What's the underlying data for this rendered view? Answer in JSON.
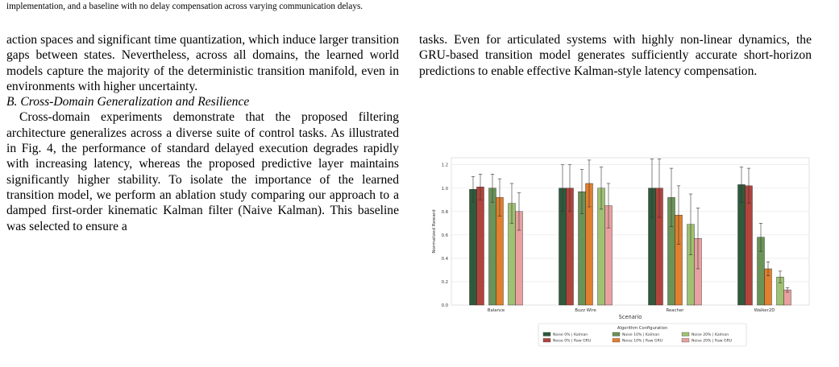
{
  "caption_tail": "implementation, and a baseline with no delay compensation across varying communication delays.",
  "left_column": {
    "para1": "action spaces and significant time quantization, which induce larger transition gaps between states. Nevertheless, across all domains, the learned world models capture the majority of the deterministic transition manifold, even in environments with higher uncertainty.",
    "section_heading": "B. Cross-Domain Generalization and Resilience",
    "para2": "Cross-domain experiments demonstrate that the proposed filtering architecture generalizes across a diverse suite of control tasks. As illustrated in Fig. 4, the performance of standard delayed execution degrades rapidly with increasing latency, whereas the proposed predictive layer maintains significantly higher stability. To isolate the importance of the learned transition model, we perform an ablation study comparing our approach to a damped first-order kinematic Kalman filter (Naive Kalman). This baseline was selected to ensure a"
  },
  "right_column": {
    "para1": "tasks. Even for articulated systems with highly non-linear dynamics, the GRU-based transition model generates sufficiently accurate short-horizon predictions to enable effective Kalman-style latency compensation."
  },
  "colors": {
    "noise0_kalman": "#2f5a3c",
    "noise0_gru": "#b0443d",
    "noise10_kalman": "#6a9357",
    "noise10_gru": "#e07f2e",
    "noise20_kalman": "#9fc172",
    "noise20_gru": "#e8a1a0"
  },
  "chart_data": {
    "type": "bar",
    "title": "",
    "xlabel": "Scenario",
    "ylabel": "Normalized Reward",
    "ylim": [
      0,
      1.26
    ],
    "yticks": [
      "0.0",
      "0.2",
      "0.4",
      "0.6",
      "0.8",
      "1.0",
      "1.2"
    ],
    "grid": "horizontal",
    "categories": [
      "Balance",
      "Buzz Wire",
      "Reacher",
      "Walker2D"
    ],
    "series": [
      {
        "name": "Noise 0% | Kalman",
        "color_key": "noise0_kalman",
        "values": [
          0.99,
          1.0,
          1.0,
          1.03
        ],
        "errors": [
          0.11,
          0.2,
          0.25,
          0.15
        ]
      },
      {
        "name": "Noise 0% | Raw GRU",
        "color_key": "noise0_gru",
        "values": [
          1.01,
          1.0,
          1.0,
          1.02
        ],
        "errors": [
          0.11,
          0.2,
          0.25,
          0.15
        ]
      },
      {
        "name": "Noise 10% | Kalman",
        "color_key": "noise10_kalman",
        "values": [
          1.0,
          0.97,
          0.92,
          0.58
        ],
        "errors": [
          0.12,
          0.19,
          0.25,
          0.12
        ]
      },
      {
        "name": "Noise 10% | Raw GRU",
        "color_key": "noise10_gru",
        "values": [
          0.92,
          1.04,
          0.77,
          0.31
        ],
        "errors": [
          0.16,
          0.2,
          0.25,
          0.06
        ]
      },
      {
        "name": "Noise 20% | Kalman",
        "color_key": "noise20_kalman",
        "values": [
          0.87,
          1.0,
          0.69,
          0.24
        ],
        "errors": [
          0.17,
          0.18,
          0.26,
          0.05
        ]
      },
      {
        "name": "Noise 20% | Raw GRU",
        "color_key": "noise20_gru",
        "values": [
          0.8,
          0.85,
          0.57,
          0.13
        ],
        "errors": [
          0.16,
          0.19,
          0.26,
          0.02
        ]
      }
    ],
    "legend": {
      "title": "Algorithm Configuration",
      "placement": "bottom-center"
    }
  }
}
